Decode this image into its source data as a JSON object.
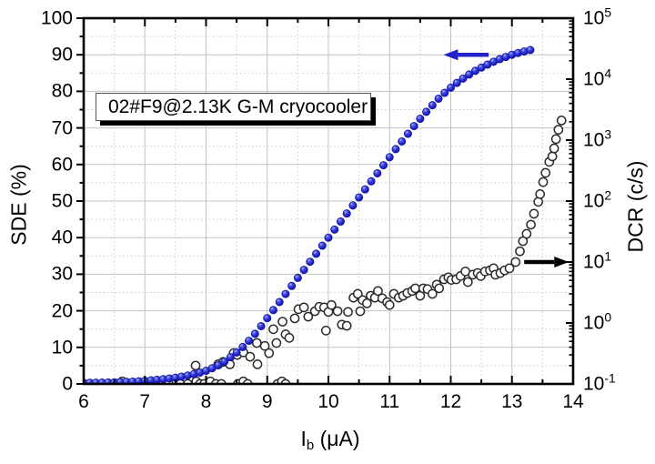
{
  "figure": {
    "annotation_box": {
      "text": "02#F9@2.13K G-M cryocooler"
    },
    "x_axis": {
      "title_pre": "I",
      "title_sub": "b",
      "title_post": " (μA)",
      "min": 6,
      "max": 14,
      "major_ticks": [
        6,
        7,
        8,
        9,
        10,
        11,
        12,
        13,
        14
      ],
      "minor_step": 0.5
    },
    "y_left_axis": {
      "title": "SDE (%)",
      "min": 0,
      "max": 100,
      "major_ticks": [
        100,
        90,
        80,
        70,
        60,
        50,
        40,
        30,
        20,
        10,
        0
      ],
      "minor_step": 5
    },
    "y_right_axis": {
      "title": "DCR (c/s)",
      "base_label": "10",
      "min_exp": -1,
      "max_exp": 5,
      "tick_exponents": [
        5,
        4,
        3,
        2,
        1,
        0,
        -1
      ]
    },
    "colors": {
      "sde_marker": "#2222cc",
      "sde_marker_dark": "#12129e",
      "sde_marker_light": "#aab8ff",
      "dcr_marker_stroke": "#2b2b2b",
      "grid_major": "#c3c3c3",
      "grid_minor": "#cccccc",
      "frame": "#000000",
      "background": "#ffffff"
    },
    "arrows": [
      {
        "name": "sde-arrow",
        "color": "#2222cc",
        "direction": "left",
        "x_tail_uA": 12.62,
        "x_tip_uA": 11.88,
        "y_axis": "left",
        "y_value": 90
      },
      {
        "name": "dcr-arrow",
        "color": "#000000",
        "direction": "right",
        "x_tail_uA": 13.2,
        "x_tip_uA": 13.93,
        "y_axis": "right",
        "y_value": 10
      }
    ]
  },
  "chart_data": {
    "type": "scatter",
    "title": "",
    "xlabel": "Ib (uA)",
    "ylabel_left": "SDE (%)",
    "ylabel_right": "DCR (c/s)",
    "x_range": [
      6,
      14
    ],
    "y_left_range": [
      0,
      100
    ],
    "y_right_range_log10": [
      -1,
      5
    ],
    "grid": true,
    "series": [
      {
        "name": "SDE",
        "axis": "left",
        "marker": "filled-circle",
        "color": "#2222cc",
        "x_start_uA": 6.0,
        "x_step_uA": 0.1,
        "y_percent": [
          0.3,
          0.32,
          0.34,
          0.37,
          0.4,
          0.45,
          0.5,
          0.56,
          0.63,
          0.72,
          0.85,
          1.0,
          1.15,
          1.3,
          1.5,
          1.7,
          2.0,
          2.3,
          2.7,
          3.1,
          3.6,
          4.3,
          5.1,
          6.1,
          7.3,
          8.6,
          10.1,
          11.8,
          13.7,
          15.8,
          18.0,
          20.2,
          22.4,
          24.6,
          26.8,
          29.0,
          31.2,
          33.4,
          35.6,
          37.8,
          40.0,
          42.2,
          44.4,
          46.6,
          48.8,
          51.0,
          53.2,
          55.4,
          57.6,
          59.8,
          62.0,
          64.2,
          66.3,
          68.4,
          70.5,
          72.5,
          74.4,
          76.2,
          78.0,
          79.6,
          81.0,
          82.3,
          83.5,
          84.6,
          85.6,
          86.5,
          87.3,
          88.1,
          88.8,
          89.4,
          90.0,
          90.5,
          90.9,
          91.3
        ]
      },
      {
        "name": "DCR",
        "axis": "right",
        "marker": "open-circle",
        "color": "#2b2b2b",
        "points": [
          [
            6.56,
            0.1
          ],
          [
            6.63,
            0.11
          ],
          [
            7.39,
            0.1
          ],
          [
            7.58,
            0.1
          ],
          [
            7.7,
            0.1
          ],
          [
            7.83,
            0.2
          ],
          [
            7.84,
            0.11
          ],
          [
            7.9,
            0.1
          ],
          [
            7.97,
            0.1
          ],
          [
            8.07,
            0.11
          ],
          [
            8.16,
            0.1
          ],
          [
            8.2,
            0.21
          ],
          [
            8.25,
            0.1
          ],
          [
            8.28,
            0.23
          ],
          [
            8.39,
            0.21
          ],
          [
            8.45,
            0.32
          ],
          [
            8.51,
            0.3
          ],
          [
            8.52,
            0.1
          ],
          [
            8.61,
            0.33
          ],
          [
            8.61,
            0.11
          ],
          [
            8.68,
            0.1
          ],
          [
            8.72,
            0.28
          ],
          [
            8.83,
            0.47
          ],
          [
            8.84,
            0.21
          ],
          [
            8.96,
            0.42
          ],
          [
            9.03,
            0.32
          ],
          [
            9.1,
            0.79
          ],
          [
            9.15,
            0.47
          ],
          [
            9.17,
            0.1
          ],
          [
            9.24,
            0.11
          ],
          [
            9.25,
            1.05
          ],
          [
            9.3,
            0.65
          ],
          [
            9.3,
            0.1
          ],
          [
            9.36,
            0.57
          ],
          [
            9.45,
            1.19
          ],
          [
            9.51,
            1.68
          ],
          [
            9.6,
            1.8
          ],
          [
            9.67,
            1.27
          ],
          [
            9.78,
            1.56
          ],
          [
            9.85,
            1.84
          ],
          [
            9.93,
            1.8
          ],
          [
            9.96,
            0.75
          ],
          [
            10.0,
            1.52
          ],
          [
            10.05,
            1.97
          ],
          [
            10.15,
            1.56
          ],
          [
            10.22,
            0.94
          ],
          [
            10.3,
            0.9
          ],
          [
            10.32,
            1.52
          ],
          [
            10.41,
            2.6
          ],
          [
            10.48,
            3.0
          ],
          [
            10.52,
            1.56
          ],
          [
            10.56,
            2.37
          ],
          [
            10.63,
            2.1
          ],
          [
            10.69,
            2.8
          ],
          [
            10.76,
            2.6
          ],
          [
            10.81,
            3.35
          ],
          [
            10.88,
            2.54
          ],
          [
            10.96,
            2.2
          ],
          [
            11.0,
            1.97
          ],
          [
            11.07,
            3.0
          ],
          [
            11.15,
            2.6
          ],
          [
            11.22,
            2.8
          ],
          [
            11.29,
            3.1
          ],
          [
            11.37,
            3.35
          ],
          [
            11.42,
            3.7
          ],
          [
            11.5,
            2.8
          ],
          [
            11.55,
            3.7
          ],
          [
            11.62,
            3.6
          ],
          [
            11.7,
            3.0
          ],
          [
            11.77,
            4.25
          ],
          [
            11.81,
            3.7
          ],
          [
            11.89,
            5.2
          ],
          [
            11.96,
            5.6
          ],
          [
            12.01,
            5.1
          ],
          [
            12.09,
            5.2
          ],
          [
            12.16,
            5.9
          ],
          [
            12.24,
            7.0
          ],
          [
            12.28,
            4.7
          ],
          [
            12.36,
            6.2
          ],
          [
            12.44,
            6.6
          ],
          [
            12.49,
            5.9
          ],
          [
            12.56,
            7.0
          ],
          [
            12.64,
            7.3
          ],
          [
            12.7,
            7.9
          ],
          [
            12.73,
            6.2
          ],
          [
            12.81,
            6.6
          ],
          [
            12.88,
            7.3
          ],
          [
            12.96,
            7.9
          ],
          [
            13.06,
            10
          ],
          [
            13.13,
            15
          ],
          [
            13.18,
            22
          ],
          [
            13.24,
            29
          ],
          [
            13.31,
            41
          ],
          [
            13.36,
            62
          ],
          [
            13.43,
            97
          ],
          [
            13.46,
            130
          ],
          [
            13.51,
            205
          ],
          [
            13.55,
            290
          ],
          [
            13.61,
            440
          ],
          [
            13.66,
            540
          ],
          [
            13.69,
            730
          ],
          [
            13.72,
            1040
          ],
          [
            13.76,
            1480
          ],
          [
            13.81,
            2100
          ]
        ]
      }
    ]
  }
}
